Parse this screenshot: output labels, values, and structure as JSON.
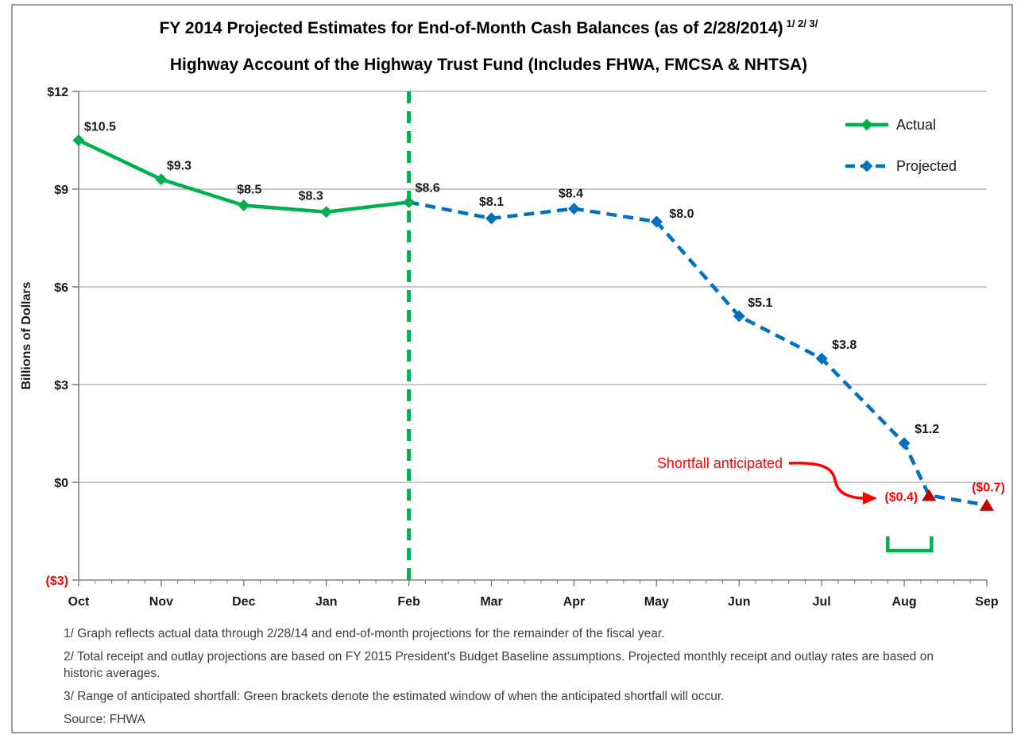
{
  "chart_data": {
    "type": "line",
    "title": "FY 2014 Projected Estimates for End-of-Month Cash Balances (as of 2/28/2014)",
    "title_superscript": "1/ 2/ 3/",
    "subtitle": "Highway Account of the Highway Trust Fund (Includes FHWA, FMCSA & NHTSA)",
    "xlabel": "",
    "ylabel": "Billions of Dollars",
    "ylim": [
      -3,
      12
    ],
    "grid": "horizontal",
    "legend_position": "top-right-inside",
    "categories": [
      "Oct",
      "Nov",
      "Dec",
      "Jan",
      "Feb",
      "Mar",
      "Apr",
      "May",
      "Jun",
      "Jul",
      "Aug",
      "Sep"
    ],
    "yticks": [
      {
        "value": 12,
        "label": "$12",
        "color": "#1a1a1a"
      },
      {
        "value": 9,
        "label": "$9",
        "color": "#1a1a1a"
      },
      {
        "value": 6,
        "label": "$6",
        "color": "#1a1a1a"
      },
      {
        "value": 3,
        "label": "$3",
        "color": "#1a1a1a"
      },
      {
        "value": 0,
        "label": "$0",
        "color": "#1a1a1a"
      },
      {
        "value": -3,
        "label": "($3)",
        "color": "#ff0000"
      }
    ],
    "series": [
      {
        "name": "Actual",
        "color": "#00B050",
        "line_style": "solid",
        "marker": "diamond",
        "points": [
          {
            "x": 0,
            "y": 10.5,
            "label": "$10.5",
            "anchor": "start",
            "dx": 7,
            "dy": -12
          },
          {
            "x": 1,
            "y": 9.3,
            "label": "$9.3",
            "anchor": "start",
            "dx": 7,
            "dy": -12
          },
          {
            "x": 2,
            "y": 8.5,
            "label": "$8.5",
            "anchor": "middle",
            "dx": 7,
            "dy": -15
          },
          {
            "x": 3,
            "y": 8.3,
            "label": "$8.3",
            "anchor": "end",
            "dx": -4,
            "dy": -15
          },
          {
            "x": 4,
            "y": 8.6,
            "label": "$8.6",
            "anchor": "start",
            "dx": 8,
            "dy": -13
          }
        ]
      },
      {
        "name": "Projected",
        "color": "#0070C0",
        "line_style": "dashed",
        "marker": "diamond",
        "points": [
          {
            "x": 4,
            "y": 8.6,
            "marker": "none"
          },
          {
            "x": 5,
            "y": 8.1,
            "label": "$8.1",
            "anchor": "middle",
            "dx": 0,
            "dy": -16
          },
          {
            "x": 6,
            "y": 8.4,
            "label": "$8.4",
            "anchor": "middle",
            "dx": -4,
            "dy": -14
          },
          {
            "x": 7,
            "y": 8.0,
            "label": "$8.0",
            "anchor": "start",
            "dx": 16,
            "dy": -5
          },
          {
            "x": 8,
            "y": 5.1,
            "label": "$5.1",
            "anchor": "start",
            "dx": 11,
            "dy": -12
          },
          {
            "x": 9,
            "y": 3.8,
            "label": "$3.8",
            "anchor": "start",
            "dx": 13,
            "dy": -12
          },
          {
            "x": 10,
            "y": 1.2,
            "label": "$1.2",
            "anchor": "start",
            "dx": 13,
            "dy": -13
          },
          {
            "x": 10.3,
            "y": -0.4,
            "label": "($0.4)",
            "anchor": "end",
            "dx": -14,
            "dy": 7,
            "marker": "triangle",
            "label_color": "#ff0000"
          },
          {
            "x": 11,
            "y": -0.7,
            "label": "($0.7)",
            "anchor": "middle",
            "dx": 2,
            "dy": -17,
            "marker": "triangle",
            "label_color": "#ff0000"
          }
        ]
      }
    ],
    "annotations": {
      "divider_x": 4,
      "divider_color": "#00B050",
      "shortfall_text": "Shortfall anticipated",
      "shortfall_color": "#ff0000",
      "triangle_color": "#C00000",
      "bracket": {
        "x_start": 9.8,
        "x_end": 10.33,
        "color": "#00B050"
      }
    },
    "axis_color": "#808080",
    "gridline_color": "#A6A6A6"
  },
  "footnotes": [
    "1/ Graph reflects actual data through 2/28/14 and end-of-month projections for the remainder of the fiscal year.",
    "2/ Total receipt and outlay projections are based on FY 2015 President's Budget Baseline assumptions.  Projected monthly receipt and outlay rates are based on historic averages.",
    "3/ Range of anticipated shortfall: Green brackets denote the estimated window of when the anticipated shortfall will occur."
  ],
  "source": "Source: FHWA"
}
